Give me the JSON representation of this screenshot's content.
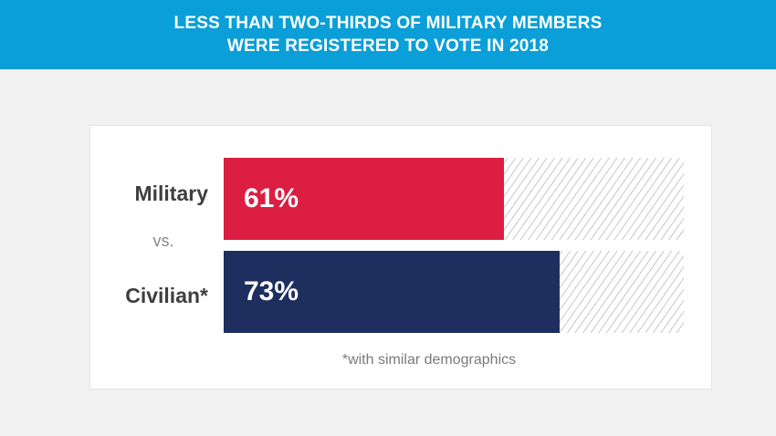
{
  "header": {
    "title_line1": "LESS THAN TWO-THIRDS OF MILITARY MEMBERS",
    "title_line2": "WERE REGISTERED TO VOTE IN 2018"
  },
  "vs_label": "vs.",
  "footnote": "*with similar demographics",
  "colors": {
    "header_bg": "#0a9fd8",
    "military": "#dc1e43",
    "civilian": "#1e2f5f",
    "hatch": "#c8c8c8"
  },
  "chart_data": {
    "type": "bar",
    "orientation": "horizontal",
    "title": "LESS THAN TWO-THIRDS OF MILITARY MEMBERS WERE REGISTERED TO VOTE IN 2018",
    "categories": [
      "Military",
      "Civilian*"
    ],
    "values": [
      61,
      73
    ],
    "value_labels": [
      "61%",
      "73%"
    ],
    "unit": "%",
    "xlim": [
      0,
      100
    ],
    "grid": false,
    "legend": "none"
  }
}
